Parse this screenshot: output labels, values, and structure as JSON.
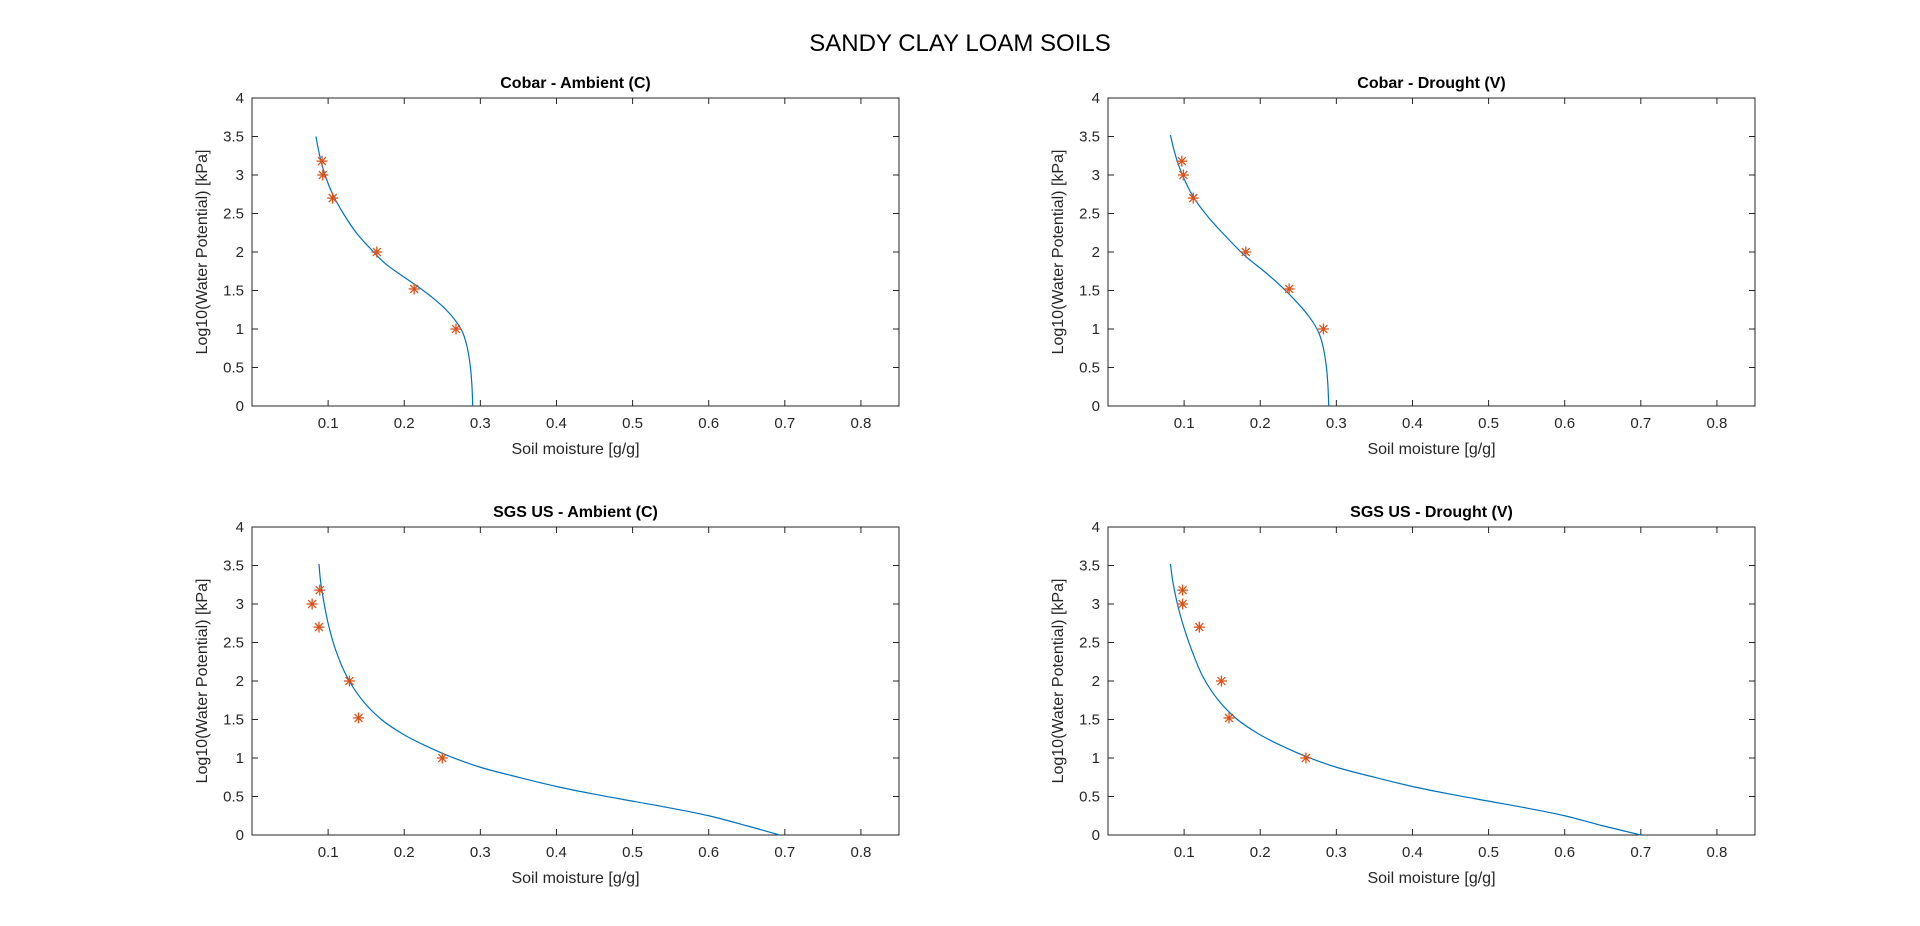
{
  "figure_title": "SANDY CLAY LOAM SOILS",
  "colors": {
    "fit_line": "#0072BD",
    "observed_marker": "#D95319",
    "axes": "#262626"
  },
  "chart_data": [
    {
      "type": "line",
      "title": "Cobar - Ambient (C)",
      "xlabel": "Soil moisture [g/g]",
      "ylabel": "Log10(Water Potential) [kPa]",
      "xlim": [
        0,
        0.85
      ],
      "ylim": [
        0,
        4
      ],
      "xticks": [
        "0.1",
        "0.2",
        "0.3",
        "0.4",
        "0.5",
        "0.6",
        "0.7",
        "0.8"
      ],
      "yticks": [
        "0",
        "0.5",
        "1",
        "1.5",
        "2",
        "2.5",
        "3",
        "3.5",
        "4"
      ],
      "grid": false,
      "series": [
        {
          "kind": "line",
          "x": [
            0.29,
            0.289,
            0.287,
            0.283,
            0.277,
            0.268,
            0.255,
            0.238,
            0.218,
            0.196,
            0.175,
            0.155,
            0.137,
            0.12,
            0.106,
            0.096,
            0.089,
            0.084
          ],
          "y": [
            0.0,
            0.25,
            0.5,
            0.75,
            0.95,
            1.1,
            1.25,
            1.4,
            1.55,
            1.7,
            1.85,
            2.05,
            2.25,
            2.5,
            2.75,
            3.0,
            3.25,
            3.5
          ]
        },
        {
          "kind": "marker",
          "marker": "*",
          "x": [
            0.092,
            0.093,
            0.106,
            0.164,
            0.213,
            0.268
          ],
          "y": [
            3.18,
            3.0,
            2.7,
            2.0,
            1.52,
            1.0
          ]
        }
      ]
    },
    {
      "type": "line",
      "title": "Cobar - Drought (V)",
      "xlabel": "Soil moisture [g/g]",
      "ylabel": "Log10(Water Potential) [kPa]",
      "xlim": [
        0,
        0.85
      ],
      "ylim": [
        0,
        4
      ],
      "xticks": [
        "0.1",
        "0.2",
        "0.3",
        "0.4",
        "0.5",
        "0.6",
        "0.7",
        "0.8"
      ],
      "yticks": [
        "0",
        "0.5",
        "1",
        "1.5",
        "2",
        "2.5",
        "3",
        "3.5",
        "4"
      ],
      "grid": false,
      "series": [
        {
          "kind": "line",
          "x": [
            0.29,
            0.289,
            0.287,
            0.283,
            0.277,
            0.265,
            0.248,
            0.228,
            0.205,
            0.18,
            0.155,
            0.132,
            0.113,
            0.1,
            0.092,
            0.086,
            0.082
          ],
          "y": [
            0.0,
            0.25,
            0.5,
            0.75,
            0.95,
            1.15,
            1.35,
            1.55,
            1.75,
            1.95,
            2.2,
            2.45,
            2.7,
            2.95,
            3.15,
            3.35,
            3.52
          ]
        },
        {
          "kind": "marker",
          "marker": "*",
          "x": [
            0.097,
            0.099,
            0.112,
            0.181,
            0.238,
            0.283
          ],
          "y": [
            3.18,
            3.0,
            2.7,
            2.0,
            1.52,
            1.0
          ]
        }
      ]
    },
    {
      "type": "line",
      "title": "SGS US - Ambient (C)",
      "xlabel": "Soil moisture [g/g]",
      "ylabel": "Log10(Water Potential) [kPa]",
      "xlim": [
        0,
        0.85
      ],
      "ylim": [
        0,
        4
      ],
      "xticks": [
        "0.1",
        "0.2",
        "0.3",
        "0.4",
        "0.5",
        "0.6",
        "0.7",
        "0.8"
      ],
      "yticks": [
        "0",
        "0.5",
        "1",
        "1.5",
        "2",
        "2.5",
        "3",
        "3.5",
        "4"
      ],
      "grid": false,
      "series": [
        {
          "kind": "line",
          "x": [
            0.693,
            0.65,
            0.6,
            0.55,
            0.5,
            0.45,
            0.4,
            0.35,
            0.3,
            0.26,
            0.23,
            0.2,
            0.17,
            0.145,
            0.125,
            0.11,
            0.1,
            0.094,
            0.09,
            0.088
          ],
          "y": [
            0.0,
            0.12,
            0.25,
            0.35,
            0.44,
            0.53,
            0.63,
            0.75,
            0.88,
            1.02,
            1.15,
            1.3,
            1.5,
            1.75,
            2.05,
            2.4,
            2.75,
            3.05,
            3.3,
            3.52
          ]
        },
        {
          "kind": "marker",
          "marker": "*",
          "x": [
            0.089,
            0.079,
            0.088,
            0.128,
            0.14,
            0.25
          ],
          "y": [
            3.18,
            3.0,
            2.7,
            2.0,
            1.52,
            1.0
          ]
        }
      ]
    },
    {
      "type": "line",
      "title": "SGS US - Drought (V)",
      "xlabel": "Soil moisture [g/g]",
      "ylabel": "Log10(Water Potential) [kPa]",
      "xlim": [
        0,
        0.85
      ],
      "ylim": [
        0,
        4
      ],
      "xticks": [
        "0.1",
        "0.2",
        "0.3",
        "0.4",
        "0.5",
        "0.6",
        "0.7",
        "0.8"
      ],
      "yticks": [
        "0",
        "0.5",
        "1",
        "1.5",
        "2",
        "2.5",
        "3",
        "3.5",
        "4"
      ],
      "grid": false,
      "series": [
        {
          "kind": "line",
          "x": [
            0.7,
            0.65,
            0.6,
            0.55,
            0.5,
            0.45,
            0.4,
            0.35,
            0.3,
            0.26,
            0.23,
            0.2,
            0.17,
            0.145,
            0.125,
            0.11,
            0.098,
            0.09,
            0.085,
            0.082
          ],
          "y": [
            0.0,
            0.12,
            0.25,
            0.35,
            0.44,
            0.53,
            0.63,
            0.75,
            0.88,
            1.02,
            1.15,
            1.3,
            1.5,
            1.75,
            2.05,
            2.4,
            2.75,
            3.05,
            3.3,
            3.52
          ]
        },
        {
          "kind": "marker",
          "marker": "*",
          "x": [
            0.098,
            0.098,
            0.12,
            0.149,
            0.159,
            0.26
          ],
          "y": [
            3.18,
            3.0,
            2.7,
            2.0,
            1.52,
            1.0
          ]
        }
      ]
    }
  ]
}
